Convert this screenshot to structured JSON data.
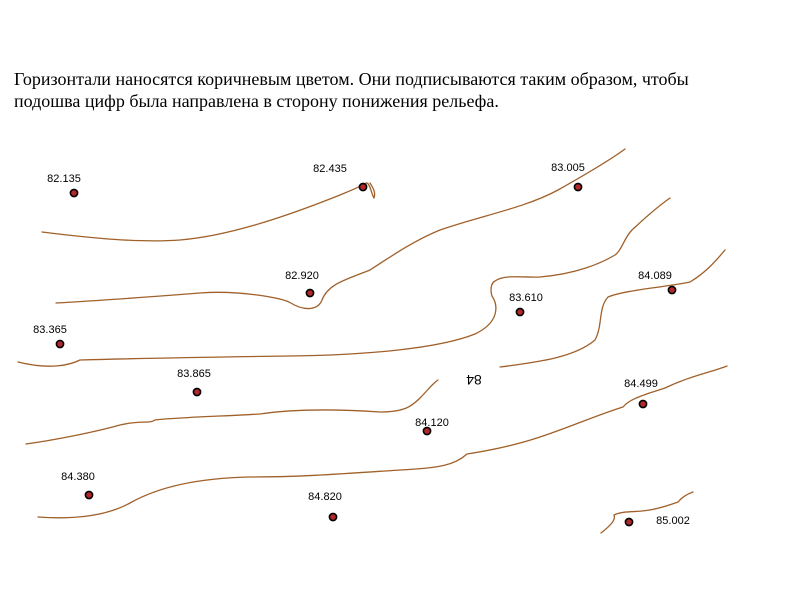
{
  "caption": "Горизонтали наносятся коричневым цветом. Они подписываются таким образом, чтобы подошва цифр была направлена в сторону понижения рельефа.",
  "colors": {
    "contour": "#a0602a",
    "point_outer": "#000000",
    "point_inner": "#b0282a",
    "text": "#000000"
  },
  "elevation_points": [
    {
      "label": "82.135"
    },
    {
      "label": "82.435"
    },
    {
      "label": "83.005"
    },
    {
      "label": "82.920"
    },
    {
      "label": "84.089"
    },
    {
      "label": "83.610"
    },
    {
      "label": "83.365"
    },
    {
      "label": "83.865"
    },
    {
      "label": "84.499"
    },
    {
      "label": "84.120"
    },
    {
      "label": "84.380"
    },
    {
      "label": "84.820"
    },
    {
      "label": "85.002"
    }
  ],
  "contour_label": "84"
}
